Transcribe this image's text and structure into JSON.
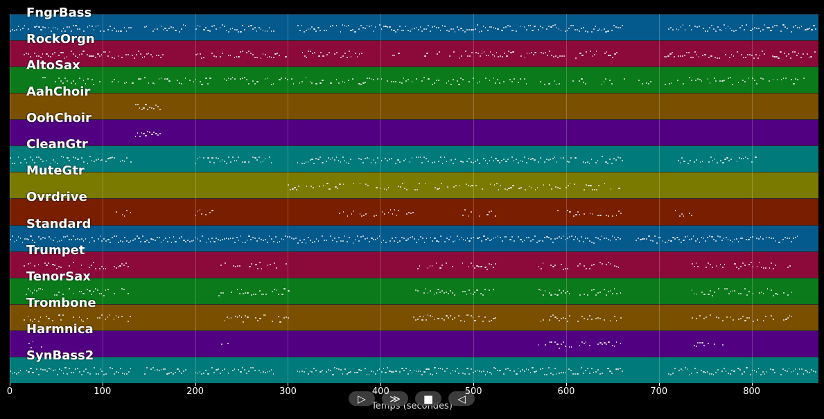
{
  "chart_data": {
    "type": "piano-roll",
    "xlabel": "Temps (secondes)",
    "xlim": [
      0,
      872
    ],
    "x_ticks": [
      0,
      100,
      200,
      300,
      400,
      500,
      600,
      700,
      800
    ],
    "tracks": [
      {
        "name": "FngrBass",
        "color": "#045a8d",
        "regions": [
          [
            0,
            130
          ],
          [
            145,
            190
          ],
          [
            200,
            285
          ],
          [
            310,
            660
          ],
          [
            710,
            870
          ]
        ],
        "density": 0.9
      },
      {
        "name": "RockOrgn",
        "color": "#8b0a3a",
        "regions": [
          [
            15,
            165
          ],
          [
            170,
            165
          ],
          [
            200,
            300
          ],
          [
            315,
            345
          ],
          [
            350,
            380
          ],
          [
            410,
            420
          ],
          [
            445,
            600
          ],
          [
            610,
            660
          ],
          [
            705,
            870
          ]
        ],
        "density": 0.8
      },
      {
        "name": "AltoSax",
        "color": "#0a7a1a",
        "regions": [
          [
            35,
            860
          ]
        ],
        "density": 0.55
      },
      {
        "name": "AahChoir",
        "color": "#7a5000",
        "regions": [
          [
            135,
            162
          ]
        ],
        "density": 1.0
      },
      {
        "name": "OohChoir",
        "color": "#500080",
        "regions": [
          [
            135,
            162
          ]
        ],
        "density": 1.0
      },
      {
        "name": "CleanGtr",
        "color": "#007a7a",
        "regions": [
          [
            0,
            130
          ],
          [
            200,
            285
          ],
          [
            310,
            660
          ],
          [
            720,
            805
          ]
        ],
        "density": 0.8
      },
      {
        "name": "MuteGtr",
        "color": "#7a7a00",
        "regions": [
          [
            300,
            660
          ]
        ],
        "density": 0.55
      },
      {
        "name": "Ovrdrive",
        "color": "#7a1e00",
        "regions": [
          [
            110,
            130
          ],
          [
            200,
            220
          ],
          [
            355,
            435
          ],
          [
            488,
            525
          ],
          [
            590,
            660
          ],
          [
            715,
            735
          ]
        ],
        "density": 0.6
      },
      {
        "name": "Standard",
        "color": "#045a8d",
        "regions": [
          [
            0,
            660
          ],
          [
            675,
            850
          ]
        ],
        "density": 0.95
      },
      {
        "name": "Trumpet",
        "color": "#8b0a3a",
        "regions": [
          [
            15,
            130
          ],
          [
            225,
            300
          ],
          [
            435,
            525
          ],
          [
            570,
            660
          ],
          [
            735,
            845
          ]
        ],
        "density": 0.65
      },
      {
        "name": "TenorSax",
        "color": "#0a7a1a",
        "regions": [
          [
            15,
            130
          ],
          [
            225,
            300
          ],
          [
            435,
            525
          ],
          [
            570,
            660
          ],
          [
            735,
            845
          ]
        ],
        "density": 0.65
      },
      {
        "name": "Trombone",
        "color": "#7a5000",
        "regions": [
          [
            15,
            130
          ],
          [
            225,
            300
          ],
          [
            435,
            525
          ],
          [
            570,
            660
          ],
          [
            735,
            845
          ]
        ],
        "density": 0.65
      },
      {
        "name": "Harmnica",
        "color": "#500080",
        "regions": [
          [
            18,
            35
          ],
          [
            228,
            235
          ],
          [
            570,
            660
          ],
          [
            735,
            770
          ]
        ],
        "density": 0.6
      },
      {
        "name": "SynBass2",
        "color": "#007a7a",
        "regions": [
          [
            0,
            130
          ],
          [
            145,
            190
          ],
          [
            200,
            285
          ],
          [
            310,
            660
          ],
          [
            710,
            870
          ]
        ],
        "density": 0.9
      }
    ]
  },
  "controls": {
    "play": "▷",
    "fast_forward": "≫",
    "stop": "■",
    "rewind": "◁"
  }
}
